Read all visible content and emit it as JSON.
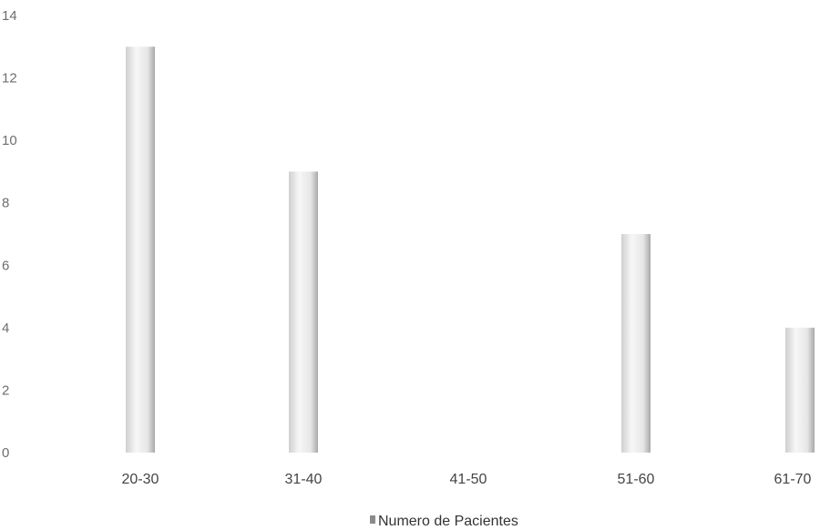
{
  "chart_data": {
    "type": "bar",
    "title": "",
    "xlabel": "",
    "ylabel": "",
    "categories": [
      "20-30",
      "31-40",
      "41-50",
      "51-60",
      "61-70"
    ],
    "series": [
      {
        "name": "Numero de Pacientes",
        "values": [
          13,
          9,
          0,
          7,
          4
        ]
      }
    ],
    "ylim": [
      0,
      14
    ],
    "yticks": [
      0,
      2,
      4,
      6,
      8,
      10,
      12,
      14
    ],
    "grid": false,
    "legend_position": "bottom",
    "colors": {
      "bar_light": "#f4f4f4",
      "bar_dark": "#bdbdbd",
      "axis_text": "#6e6e6e"
    }
  }
}
